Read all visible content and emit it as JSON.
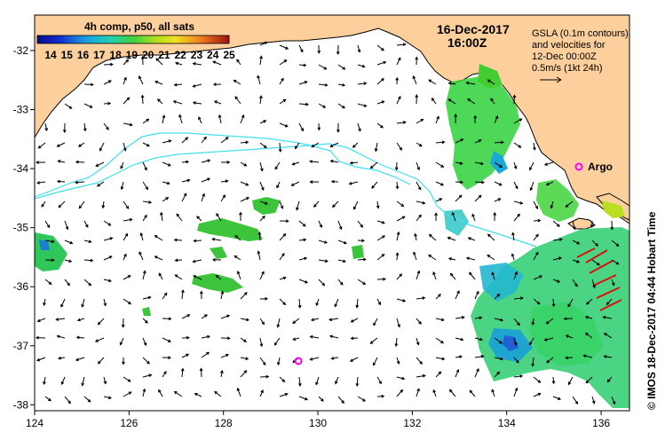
{
  "map": {
    "x_axis_ticks": [
      "124",
      "126",
      "128",
      "130",
      "132",
      "134",
      "136"
    ],
    "y_axis_ticks": [
      "-32",
      "-33",
      "-34",
      "-35",
      "-36",
      "-37",
      "-38"
    ],
    "lon_range": [
      124,
      136.6
    ],
    "lat_range": [
      -31.4,
      -38.1
    ],
    "land_color": "#fccf9c",
    "contour_color": "#40e0e8",
    "arrow_color": "#000000"
  },
  "colorbar": {
    "title": "4h comp, p50, all sats",
    "labels": [
      "14",
      "15",
      "16",
      "17",
      "18",
      "19",
      "20",
      "21",
      "22",
      "23",
      "24",
      "25"
    ]
  },
  "header": {
    "date": "16-Dec-2017",
    "time": "16:00Z"
  },
  "legend": {
    "line1": "GSLA (0.1m contours)",
    "line2": "and velocities for",
    "line3": "12-Dec 00:00Z",
    "line4": "0.5m/s (1kt 24h)"
  },
  "markers": {
    "argo_label": "Argo",
    "argo_color": "#ff00ff"
  },
  "credit": {
    "text": "© IMOS 18-Dec-2017 04:44 Hobart Time"
  }
}
